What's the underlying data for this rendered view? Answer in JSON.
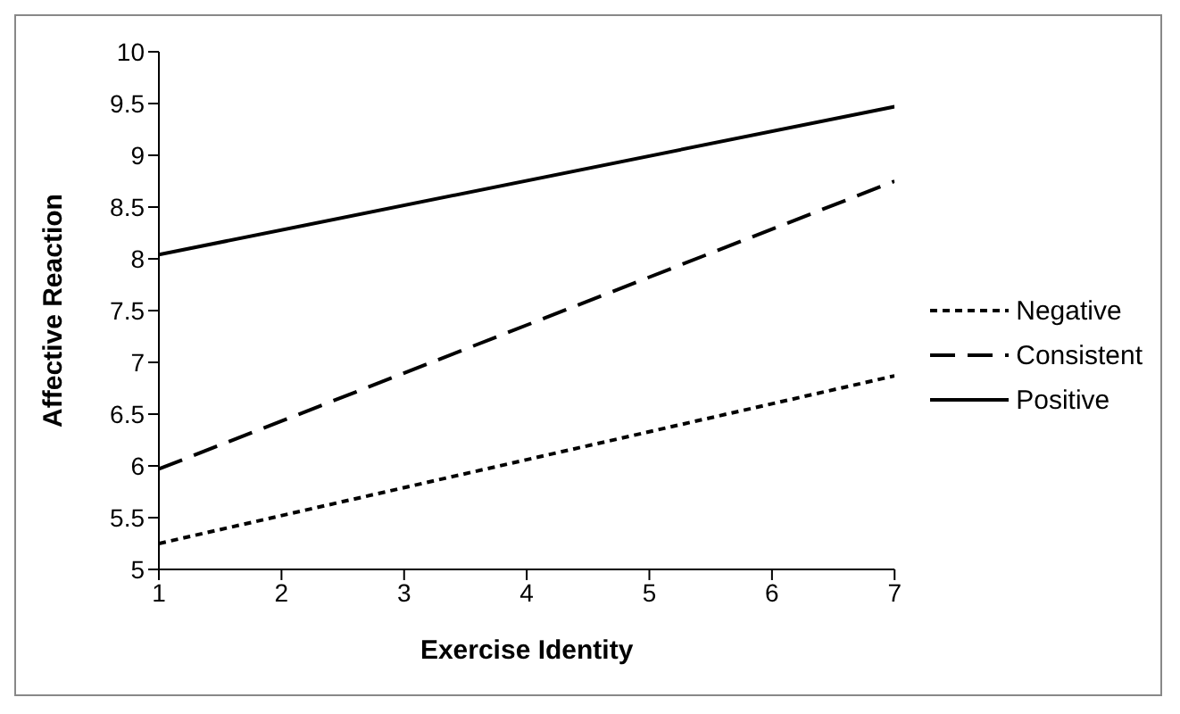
{
  "chart_data": {
    "type": "line",
    "xlabel": "Exercise Identity",
    "ylabel": "Affective Reaction",
    "x": [
      1,
      7
    ],
    "series": [
      {
        "name": "Negative",
        "color": "#000000",
        "line_style": "dotted",
        "values": [
          5.25,
          6.87
        ]
      },
      {
        "name": "Consistent",
        "color": "#000000",
        "line_style": "dashed",
        "values": [
          5.97,
          8.75
        ]
      },
      {
        "name": "Positive",
        "color": "#000000",
        "line_style": "solid",
        "values": [
          8.04,
          9.47
        ]
      }
    ],
    "xlim": [
      1,
      7
    ],
    "xticks": [
      1,
      2,
      3,
      4,
      5,
      6,
      7
    ],
    "ylim": [
      5,
      10
    ],
    "yticks": [
      5,
      5.5,
      6,
      6.5,
      7,
      7.5,
      8,
      8.5,
      9,
      9.5,
      10
    ],
    "grid": false,
    "legend": "right",
    "marker": "none"
  }
}
